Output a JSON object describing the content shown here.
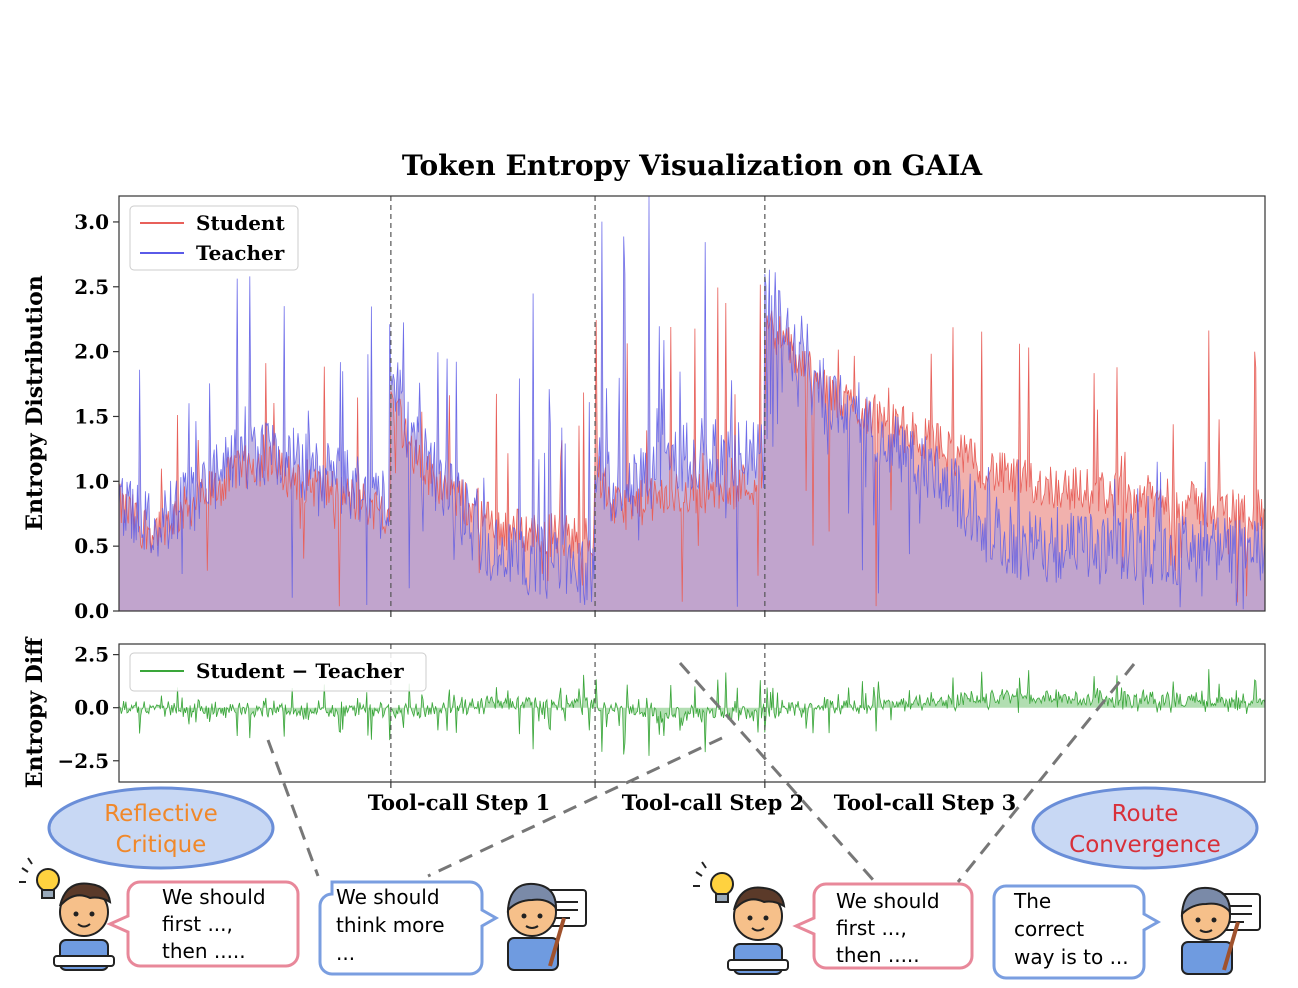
{
  "colors": {
    "student": "#e8605a",
    "student_fill": "#f0a8a4",
    "teacher": "#5a5ae8",
    "teacher_fill": "#b0a0d8",
    "diff": "#3aa63a",
    "diff_fill": "#9fd69f",
    "bubble_red": "#e8889a",
    "bubble_blue": "#7a9ee0",
    "ellipse_fill": "#c8d8f4",
    "ellipse_stroke": "#6a8ed8",
    "orange_text": "#f0882a",
    "red_text": "#d8303a"
  },
  "chart_data": [
    {
      "type": "area",
      "title": "Token Entropy Visualization on GAIA",
      "xlabel": "",
      "ylabel": "Entropy Distribution",
      "ylim": [
        0,
        3.2
      ],
      "yticks": [
        "0.0",
        "0.5",
        "1.0",
        "1.5",
        "2.0",
        "2.5",
        "3.0"
      ],
      "grid": false,
      "legend_position": "upper left",
      "n_tokens": 1000,
      "step_boundaries": [
        237,
        415,
        563
      ],
      "series": [
        {
          "name": "Student",
          "segments": [
            {
              "from": 0,
              "to": 237,
              "base": [
                0.45,
                1.15,
                0.75
              ],
              "spike_max": 2.0
            },
            {
              "from": 237,
              "to": 415,
              "base": [
                1.3,
                0.65,
                0.55
              ],
              "spike_max": 1.75
            },
            {
              "from": 415,
              "to": 563,
              "base": [
                0.75,
                0.9,
                1.0
              ],
              "spike_max": 2.6
            },
            {
              "from": 563,
              "to": 1000,
              "base": [
                1.9,
                1.0,
                0.75
              ],
              "spike_max": 2.2
            }
          ]
        },
        {
          "name": "Teacher",
          "segments": [
            {
              "from": 0,
              "to": 237,
              "base": [
                0.45,
                1.25,
                0.85
              ],
              "spike_max": 2.6
            },
            {
              "from": 237,
              "to": 415,
              "base": [
                1.5,
                0.45,
                0.3
              ],
              "spike_max": 2.5
            },
            {
              "from": 415,
              "to": 563,
              "base": [
                0.8,
                1.2,
                1.2
              ],
              "spike_max": 3.2
            },
            {
              "from": 563,
              "to": 1000,
              "base": [
                2.1,
                0.5,
                0.45
              ],
              "spike_max": 1.2
            }
          ]
        }
      ]
    },
    {
      "type": "area",
      "title": "",
      "xlabel": "",
      "ylabel": "Entropy Diff",
      "ylim": [
        -3.5,
        3.0
      ],
      "yticks": [
        "−2.5",
        "0.0",
        "2.5"
      ],
      "grid": false,
      "legend_position": "upper left",
      "xtick_labels": [
        "Tool-call Step 1",
        "Tool-call Step 2",
        "Tool-call Step 3"
      ],
      "series": [
        {
          "name": "Student − Teacher",
          "mean_by_segment": [
            -0.1,
            0.2,
            -0.5,
            0.4
          ]
        }
      ]
    }
  ],
  "annotations": {
    "left_ellipse": [
      "Reflective",
      "Critique"
    ],
    "right_ellipse": [
      "Route",
      "Convergence"
    ],
    "bubble1": [
      "We should",
      "first ...,",
      "then ....."
    ],
    "bubble2": [
      "We should",
      "think more",
      "..."
    ],
    "bubble3": [
      "We should",
      "first ...,",
      "then ....."
    ],
    "bubble4": [
      "The",
      "correct",
      "way is to ..."
    ]
  }
}
